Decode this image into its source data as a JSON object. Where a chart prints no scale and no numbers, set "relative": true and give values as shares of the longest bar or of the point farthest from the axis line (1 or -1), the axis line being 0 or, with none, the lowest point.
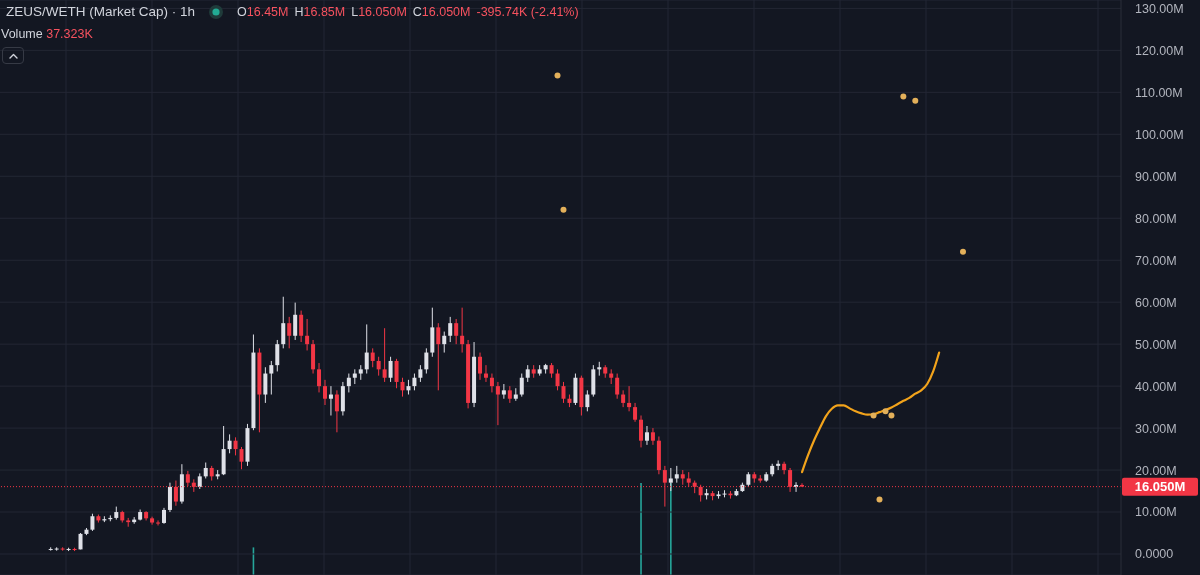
{
  "chart_data": [
    {
      "type": "candlestick",
      "title": "ZEUS/WETH (Market Cap) · 1h",
      "annotations": [
        "O16.45M",
        "H16.85M",
        "L16.050M",
        "C16.050M",
        "-395.74K (-2.41%)",
        "Volume 37.323K"
      ],
      "categories": [
        null,
        null,
        null,
        null,
        null,
        null,
        null,
        null,
        null,
        null,
        null,
        null,
        null,
        null,
        null,
        null,
        null,
        null,
        null,
        null,
        null,
        null,
        null,
        null,
        null,
        null,
        null,
        null,
        null,
        null,
        null,
        null,
        null,
        null,
        null,
        null,
        null,
        null,
        null,
        null,
        null,
        null,
        null,
        null,
        null,
        null,
        null,
        null,
        null,
        null,
        null,
        null,
        null,
        null,
        null,
        null,
        null,
        null,
        null,
        null,
        null,
        null,
        null,
        null,
        null,
        null,
        null,
        null,
        null,
        null,
        null,
        null,
        null,
        null,
        null,
        null,
        null,
        null,
        null,
        null,
        null,
        null,
        null,
        null,
        null,
        null,
        null,
        null,
        null,
        null,
        null,
        null,
        null,
        null,
        null,
        null,
        null,
        null,
        null,
        null,
        null,
        null,
        null,
        null,
        null,
        null,
        null,
        null,
        null,
        null,
        null,
        null,
        null,
        null,
        null,
        null,
        null,
        null,
        null,
        null,
        null,
        null,
        null,
        null,
        null,
        null,
        null,
        null,
        null,
        null,
        null,
        null,
        null,
        null,
        null,
        null,
        null,
        null,
        null,
        null,
        null,
        null,
        null,
        null,
        null,
        null,
        null,
        null,
        null,
        null,
        null,
        null,
        null,
        null,
        null,
        null,
        null,
        null,
        null,
        null,
        null,
        null,
        null,
        null,
        null,
        null,
        null,
        null,
        null,
        null,
        null,
        null,
        null,
        null,
        null,
        null,
        null,
        null,
        null,
        null,
        null,
        null,
        null,
        null,
        null,
        null,
        null,
        null
      ],
      "ohlc": [
        null,
        null,
        null,
        null,
        null,
        null,
        null,
        null,
        [
          1.2,
          1.6,
          0.8,
          1.2
        ],
        [
          1.2,
          1.6,
          0.8,
          1.3
        ],
        [
          1.3,
          1.6,
          0.8,
          1.2
        ],
        [
          1.2,
          1.5,
          0.7,
          1.2
        ],
        [
          1.2,
          1.5,
          0.7,
          1.1
        ],
        [
          1.1,
          5.0,
          1.1,
          4.8
        ],
        [
          4.8,
          6.2,
          4.5,
          5.8
        ],
        [
          5.8,
          9.6,
          5.5,
          9.0
        ],
        [
          9.0,
          9.4,
          7.5,
          8.0
        ],
        [
          8.0,
          9.0,
          7.6,
          8.3
        ],
        [
          8.3,
          9.2,
          7.8,
          8.6
        ],
        [
          8.6,
          11.3,
          8.2,
          10.0
        ],
        [
          10.0,
          10.3,
          7.5,
          8.0
        ],
        [
          8.0,
          8.6,
          6.5,
          7.6
        ],
        [
          7.6,
          8.8,
          7.2,
          8.2
        ],
        [
          8.2,
          10.6,
          8.0,
          10.0
        ],
        [
          10.0,
          10.2,
          8.0,
          8.5
        ],
        [
          8.5,
          8.9,
          7.0,
          7.5
        ],
        [
          7.5,
          8.0,
          6.8,
          7.4
        ],
        [
          7.4,
          11.0,
          7.2,
          10.5
        ],
        [
          10.5,
          17.0,
          10.0,
          16.0
        ],
        [
          16.0,
          17.5,
          11.5,
          12.5
        ],
        [
          12.5,
          21.4,
          12.0,
          19.0
        ],
        [
          19.0,
          19.8,
          16.2,
          17.0
        ],
        [
          17.0,
          17.8,
          14.8,
          16.0
        ],
        [
          16.0,
          19.2,
          15.5,
          18.5
        ],
        [
          18.5,
          21.8,
          18.0,
          20.5
        ],
        [
          20.5,
          21.0,
          17.5,
          18.5
        ],
        [
          18.5,
          20.0,
          17.8,
          19.0
        ],
        [
          19.0,
          30.5,
          18.8,
          25.0
        ],
        [
          25.0,
          28.5,
          24.0,
          27.0
        ],
        [
          27.0,
          27.8,
          23.5,
          25.0
        ],
        [
          25.0,
          25.5,
          20.2,
          22.0
        ],
        [
          22.0,
          31.0,
          21.0,
          30.0
        ],
        [
          30.0,
          52.3,
          29.5,
          48.0
        ],
        [
          48.0,
          49.0,
          29.0,
          38.0
        ],
        [
          38.0,
          44.5,
          36.0,
          43.0
        ],
        [
          43.0,
          46.0,
          38.0,
          45.0
        ],
        [
          45.0,
          51.0,
          43.5,
          50.0
        ],
        [
          50.0,
          61.3,
          49.0,
          55.0
        ],
        [
          55.0,
          56.5,
          49.0,
          52.0
        ],
        [
          52.0,
          59.9,
          51.0,
          57.0
        ],
        [
          57.0,
          58.0,
          50.5,
          52.0
        ],
        [
          52.0,
          56.0,
          48.5,
          50.0
        ],
        [
          50.0,
          51.0,
          43.0,
          44.0
        ],
        [
          44.0,
          45.5,
          38.5,
          40.0
        ],
        [
          40.0,
          41.5,
          35.5,
          37.0
        ],
        [
          37.0,
          40.0,
          33.0,
          38.0
        ],
        [
          38.0,
          39.0,
          29.0,
          34.0
        ],
        [
          34.0,
          41.0,
          33.0,
          40.0
        ],
        [
          40.0,
          43.0,
          38.5,
          42.0
        ],
        [
          42.0,
          44.0,
          40.5,
          43.0
        ],
        [
          43.0,
          45.0,
          41.5,
          44.0
        ],
        [
          44.0,
          54.7,
          43.0,
          48.0
        ],
        [
          48.0,
          49.0,
          44.5,
          46.0
        ],
        [
          46.0,
          47.0,
          42.5,
          44.0
        ],
        [
          44.0,
          53.8,
          41.0,
          42.0
        ],
        [
          42.0,
          47.0,
          41.0,
          46.0
        ],
        [
          46.0,
          46.5,
          39.5,
          41.0
        ],
        [
          41.0,
          42.0,
          37.5,
          39.0
        ],
        [
          39.0,
          41.5,
          38.0,
          40.0
        ],
        [
          40.0,
          43.0,
          39.0,
          42.0
        ],
        [
          42.0,
          45.0,
          41.0,
          44.0
        ],
        [
          44.0,
          49.0,
          43.0,
          48.0
        ],
        [
          48.0,
          58.7,
          47.0,
          54.0
        ],
        [
          54.0,
          55.0,
          39.0,
          50.0
        ],
        [
          50.0,
          53.0,
          48.0,
          52.0
        ],
        [
          52.0,
          56.5,
          50.5,
          55.0
        ],
        [
          55.0,
          56.0,
          50.0,
          52.0
        ],
        [
          52.0,
          58.7,
          48.0,
          50.0
        ],
        [
          50.0,
          51.0,
          34.7,
          36.0
        ],
        [
          36.0,
          50.5,
          35.0,
          47.0
        ],
        [
          47.0,
          48.0,
          41.5,
          43.0
        ],
        [
          43.0,
          45.0,
          41.0,
          42.0
        ],
        [
          42.0,
          43.0,
          38.5,
          40.0
        ],
        [
          40.0,
          41.0,
          30.7,
          38.0
        ],
        [
          38.0,
          40.5,
          37.0,
          39.0
        ],
        [
          39.0,
          40.0,
          36.0,
          37.0
        ],
        [
          37.0,
          39.5,
          36.5,
          38.0
        ],
        [
          38.0,
          43.0,
          37.5,
          42.0
        ],
        [
          42.0,
          45.0,
          41.0,
          44.0
        ],
        [
          44.0,
          45.0,
          42.0,
          43.0
        ],
        [
          43.0,
          45.0,
          42.5,
          44.0
        ],
        [
          44.0,
          45.3,
          43.0,
          45.0
        ],
        [
          45.0,
          45.5,
          42.0,
          43.0
        ],
        [
          43.0,
          44.0,
          39.0,
          40.0
        ],
        [
          40.0,
          41.0,
          36.0,
          37.0
        ],
        [
          37.0,
          38.0,
          35.0,
          36.0
        ],
        [
          36.0,
          43.0,
          35.5,
          42.0
        ],
        [
          42.0,
          42.5,
          33.0,
          35.0
        ],
        [
          35.0,
          39.0,
          34.0,
          38.0
        ],
        [
          38.0,
          45.0,
          37.5,
          44.0
        ],
        [
          44.0,
          45.8,
          42.5,
          44.5
        ],
        [
          44.5,
          45.0,
          42.0,
          43.0
        ],
        [
          43.0,
          44.0,
          40.5,
          42.0
        ],
        [
          42.0,
          43.0,
          37.0,
          38.0
        ],
        [
          38.0,
          39.0,
          35.0,
          36.0
        ],
        [
          36.0,
          40.0,
          34.0,
          35.0
        ],
        [
          35.0,
          36.0,
          31.5,
          32.0
        ],
        [
          32.0,
          33.0,
          25.4,
          27.0
        ],
        [
          27.0,
          30.5,
          26.0,
          29.0
        ],
        [
          29.0,
          30.0,
          26.0,
          27.0
        ],
        [
          27.0,
          28.0,
          19.0,
          20.0
        ],
        [
          20.0,
          21.0,
          11.3,
          17.0
        ],
        [
          17.0,
          20.5,
          15.0,
          18.0
        ],
        [
          18.0,
          21.0,
          17.0,
          19.0
        ],
        [
          19.0,
          20.0,
          16.5,
          18.0
        ],
        [
          18.0,
          19.5,
          16.0,
          17.0
        ],
        [
          17.0,
          17.5,
          14.5,
          16.0
        ],
        [
          16.0,
          16.5,
          12.5,
          14.0
        ],
        [
          14.0,
          15.5,
          13.0,
          14.5
        ],
        [
          14.5,
          15.0,
          12.8,
          13.8
        ],
        [
          13.8,
          15.0,
          13.2,
          14.2
        ],
        [
          14.2,
          15.2,
          13.5,
          14.4
        ],
        [
          14.4,
          15.0,
          13.2,
          14.0
        ],
        [
          14.0,
          15.5,
          13.8,
          15.0
        ],
        [
          15.0,
          17.0,
          14.8,
          16.5
        ],
        [
          16.5,
          19.5,
          16.0,
          19.0
        ],
        [
          19.0,
          19.5,
          17.0,
          18.0
        ],
        [
          18.0,
          18.8,
          17.0,
          17.5
        ],
        [
          17.5,
          19.5,
          17.2,
          19.0
        ],
        [
          19.0,
          21.5,
          18.5,
          21.0
        ],
        [
          21.0,
          22.3,
          20.0,
          21.5
        ],
        [
          21.5,
          22.0,
          19.0,
          20.0
        ],
        [
          20.0,
          20.5,
          14.8,
          16.0
        ],
        [
          16.0,
          17.1,
          14.8,
          16.45
        ],
        [
          16.45,
          16.85,
          16.05,
          16.05
        ],
        null,
        null,
        null,
        null,
        null,
        null,
        null,
        null,
        null,
        null,
        null,
        null,
        null,
        null,
        null,
        null,
        null,
        null,
        null,
        null,
        null,
        null,
        null,
        null,
        null,
        null,
        null,
        null,
        null,
        null,
        null,
        null,
        null,
        null,
        null,
        null,
        null,
        null,
        null,
        null,
        null,
        null,
        null,
        null,
        null,
        null,
        null,
        null,
        null,
        null,
        null,
        null,
        null
      ],
      "colors": [
        null,
        null,
        null,
        null,
        null,
        null,
        null,
        null,
        "#dfe1e8",
        "#dfe1e8",
        "#f23645",
        "#dfe1e8",
        "#f23645",
        "#dfe1e8",
        "#dfe1e8",
        "#dfe1e8",
        "#f23645",
        "#dfe1e8",
        "#dfe1e8",
        "#dfe1e8",
        "#f23645",
        "#f23645",
        "#dfe1e8",
        "#dfe1e8",
        "#f23645",
        "#f23645",
        "#f23645",
        "#dfe1e8",
        "#dfe1e8",
        "#f23645",
        "#dfe1e8",
        "#f23645",
        "#f23645",
        "#dfe1e8",
        "#dfe1e8",
        "#f23645",
        "#dfe1e8",
        "#dfe1e8",
        "#dfe1e8",
        "#f23645",
        "#f23645",
        "#dfe1e8",
        "#dfe1e8",
        "#f23645",
        "#dfe1e8",
        "#dfe1e8",
        "#dfe1e8",
        "#dfe1e8",
        "#f23645",
        "#dfe1e8",
        "#f23645",
        "#f23645",
        "#f23645",
        "#f23645",
        "#f23645",
        "#dfe1e8",
        "#f23645",
        "#dfe1e8",
        "#dfe1e8",
        "#dfe1e8",
        "#dfe1e8",
        "#dfe1e8",
        "#f23645",
        "#f23645",
        "#f23645",
        "#dfe1e8",
        "#f23645",
        "#f23645",
        "#dfe1e8",
        "#dfe1e8",
        "#dfe1e8",
        "#dfe1e8",
        "#dfe1e8",
        "#f23645",
        "#dfe1e8",
        "#dfe1e8",
        "#f23645",
        "#f23645",
        "#f23645",
        "#dfe1e8",
        "#f23645",
        "#f23645",
        "#f23645",
        "#f23645",
        "#dfe1e8",
        "#f23645",
        "#dfe1e8",
        "#dfe1e8",
        "#dfe1e8",
        "#f23645",
        "#dfe1e8",
        "#dfe1e8",
        "#f23645",
        "#f23645",
        "#f23645",
        "#f23645",
        "#dfe1e8",
        "#f23645",
        "#dfe1e8",
        "#dfe1e8",
        "#dfe1e8",
        "#f23645",
        "#f23645",
        "#f23645",
        "#f23645",
        "#f23645",
        "#f23645",
        "#f23645",
        "#dfe1e8",
        "#f23645",
        "#f23645",
        "#f23645",
        "#dfe1e8",
        "#dfe1e8",
        "#f23645",
        "#f23645",
        "#f23645",
        "#f23645",
        "#dfe1e8",
        "#f23645",
        "#dfe1e8",
        "#dfe1e8",
        "#f23645",
        "#dfe1e8",
        "#dfe1e8",
        "#dfe1e8",
        "#f23645",
        "#f23645",
        "#dfe1e8",
        "#dfe1e8",
        "#dfe1e8",
        "#f23645",
        "#f23645",
        "#dfe1e8",
        "#f23645",
        null,
        null,
        null,
        null,
        null,
        null,
        null,
        null,
        null,
        null,
        null,
        null,
        null,
        null,
        null,
        null,
        null,
        null,
        null,
        null,
        null,
        null,
        null,
        null,
        null,
        null,
        null,
        null,
        null,
        null,
        null,
        null,
        null,
        null,
        null,
        null,
        null,
        null,
        null,
        null,
        null,
        null,
        null,
        null,
        null,
        null,
        null,
        null,
        null,
        null,
        null,
        null,
        null
      ],
      "series": [
        {
          "type": "line",
          "color": "#f2a31b",
          "values": [
            null,
            null,
            null,
            null,
            null,
            null,
            null,
            null,
            null,
            null,
            null,
            null,
            null,
            null,
            null,
            null,
            null,
            null,
            null,
            null,
            null,
            null,
            null,
            null,
            null,
            null,
            null,
            null,
            null,
            null,
            null,
            null,
            null,
            null,
            null,
            null,
            null,
            null,
            null,
            null,
            null,
            null,
            null,
            null,
            null,
            null,
            null,
            null,
            null,
            null,
            null,
            null,
            null,
            null,
            null,
            null,
            null,
            null,
            null,
            null,
            null,
            null,
            null,
            null,
            null,
            null,
            null,
            null,
            null,
            null,
            null,
            null,
            null,
            null,
            null,
            null,
            null,
            null,
            null,
            null,
            null,
            null,
            null,
            null,
            null,
            null,
            null,
            null,
            null,
            null,
            null,
            null,
            null,
            null,
            null,
            null,
            null,
            null,
            null,
            null,
            null,
            null,
            null,
            null,
            null,
            null,
            null,
            null,
            null,
            null,
            null,
            null,
            null,
            null,
            null,
            null,
            null,
            null,
            null,
            null,
            null,
            null,
            null,
            null,
            null,
            null,
            null,
            null,
            null,
            null,
            null,
            null,
            null,
            null,
            19.5,
            23.5,
            27,
            30,
            32.8,
            34.6,
            35.4,
            35.4,
            34.7,
            34,
            33.5,
            33.2,
            33.3,
            33.8,
            34.3,
            34.9,
            35.7,
            36.5,
            37.2,
            38.2,
            39,
            40.5,
            43.5,
            48,
            null,
            null,
            null,
            null,
            null,
            null,
            null,
            null,
            null,
            null,
            null,
            null,
            null,
            null,
            null,
            null,
            null,
            null,
            null,
            null,
            null,
            null,
            null,
            null,
            null,
            null,
            null,
            null,
            null,
            null
          ]
        },
        {
          "type": "scatter",
          "color": "#e3b05a",
          "marker": "circle",
          "values": [
            null,
            null,
            null,
            null,
            null,
            null,
            null,
            null,
            null,
            null,
            null,
            null,
            null,
            null,
            null,
            null,
            null,
            null,
            null,
            null,
            null,
            null,
            null,
            null,
            null,
            null,
            null,
            null,
            null,
            null,
            null,
            null,
            null,
            null,
            null,
            null,
            null,
            null,
            null,
            null,
            null,
            null,
            null,
            null,
            null,
            null,
            null,
            null,
            null,
            null,
            null,
            null,
            null,
            null,
            null,
            null,
            null,
            null,
            null,
            null,
            null,
            null,
            null,
            null,
            null,
            null,
            null,
            null,
            null,
            null,
            null,
            null,
            null,
            null,
            null,
            null,
            null,
            null,
            null,
            null,
            null,
            null,
            null,
            null,
            null,
            null,
            null,
            null,
            null,
            null,
            null,
            null,
            null,
            114,
            82,
            null,
            null,
            null,
            null,
            null,
            null,
            null,
            null,
            null,
            null,
            null,
            null,
            null,
            null,
            null,
            null,
            null,
            null,
            null,
            null,
            null,
            null,
            null,
            null,
            null,
            null,
            null,
            null,
            null,
            null,
            null,
            null,
            null,
            null,
            null,
            null,
            null,
            null,
            null,
            null,
            null,
            null,
            null,
            null,
            null,
            null,
            null,
            null,
            null,
            null,
            null,
            33,
            13,
            34,
            33,
            null,
            109,
            null,
            108,
            null,
            null,
            null,
            null,
            null,
            null,
            null,
            72,
            null,
            null,
            null,
            null,
            null,
            null,
            null,
            null,
            null,
            null,
            null,
            null,
            null,
            null,
            null,
            null,
            null,
            null,
            null,
            null,
            null,
            null,
            null,
            null,
            null,
            null
          ]
        }
      ],
      "ylim": [
        -5,
        132
      ],
      "yticks": [
        {
          "value": 0,
          "label": "0.0000"
        },
        {
          "value": 10,
          "label": "10.00M"
        },
        {
          "value": 20,
          "label": "20.00M"
        },
        {
          "value": 30,
          "label": "30.00M"
        },
        {
          "value": 40,
          "label": "40.00M"
        },
        {
          "value": 50,
          "label": "50.00M"
        },
        {
          "value": 60,
          "label": "60.00M"
        },
        {
          "value": 70,
          "label": "70.00M"
        },
        {
          "value": 80,
          "label": "80.00M"
        },
        {
          "value": 90,
          "label": "90.00M"
        },
        {
          "value": 100,
          "label": "100.00M"
        },
        {
          "value": 110,
          "label": "110.00M"
        },
        {
          "value": 120,
          "label": "120.00M"
        },
        {
          "value": 130,
          "label": "130.00M"
        }
      ],
      "ref_lines": [
        {
          "axis": "y",
          "value": 16.05,
          "label": "16.050M",
          "color": "#f23645",
          "line_style": "dotted"
        }
      ],
      "grid": true,
      "tick_labels": "y"
    },
    {
      "type": "bar",
      "relative": true,
      "tick_labels": false,
      "color": "#26a69a",
      "categories": [
        null,
        null,
        null,
        null,
        null,
        null,
        null,
        null,
        null,
        null,
        null,
        null,
        null,
        null,
        null,
        null,
        null,
        null,
        null,
        null,
        null,
        null,
        null,
        null,
        null,
        null,
        null,
        null,
        null,
        null,
        null,
        null,
        null,
        null,
        null,
        null,
        null,
        null,
        null,
        null,
        null,
        null,
        null,
        null,
        null,
        null,
        null,
        null,
        null,
        null,
        null,
        null,
        null,
        null,
        null,
        null,
        null,
        null,
        null,
        null,
        null,
        null,
        null,
        null,
        null,
        null,
        null,
        null,
        null,
        null,
        null,
        null,
        null,
        null,
        null,
        null,
        null,
        null,
        null,
        null,
        null,
        null,
        null,
        null,
        null,
        null,
        null,
        null,
        null,
        null,
        null,
        null,
        null,
        null,
        null,
        null,
        null,
        null,
        null,
        null,
        null,
        null,
        null,
        null,
        null,
        null,
        null,
        null,
        null,
        null,
        null,
        null,
        null,
        null,
        null,
        null,
        null,
        null,
        null,
        null,
        null,
        null,
        null,
        null,
        null,
        null,
        null,
        null,
        null,
        null,
        null,
        null,
        null,
        null,
        null,
        null,
        null,
        null,
        null,
        null,
        null,
        null,
        null,
        null,
        null,
        null,
        null,
        null,
        null,
        null,
        null,
        null,
        null,
        null,
        null,
        null,
        null,
        null,
        null,
        null,
        null,
        null,
        null,
        null,
        null,
        null,
        null,
        null,
        null,
        null,
        null,
        null,
        null,
        null,
        null,
        null,
        null,
        null,
        null,
        null,
        null,
        null,
        null,
        null,
        null,
        null,
        null,
        null
      ],
      "values": [
        null,
        null,
        null,
        null,
        null,
        null,
        null,
        null,
        null,
        null,
        null,
        null,
        null,
        null,
        null,
        null,
        null,
        null,
        null,
        null,
        null,
        null,
        null,
        null,
        null,
        null,
        null,
        null,
        null,
        null,
        null,
        null,
        null,
        null,
        null,
        null,
        null,
        null,
        null,
        null,
        null,
        null,
        0.3,
        null,
        null,
        null,
        null,
        null,
        null,
        null,
        null,
        null,
        null,
        null,
        null,
        null,
        null,
        null,
        null,
        null,
        null,
        null,
        null,
        null,
        null,
        null,
        null,
        null,
        null,
        null,
        null,
        null,
        null,
        null,
        null,
        null,
        null,
        null,
        null,
        null,
        null,
        null,
        null,
        null,
        null,
        null,
        null,
        null,
        null,
        null,
        null,
        null,
        null,
        null,
        null,
        null,
        null,
        null,
        null,
        null,
        null,
        null,
        null,
        null,
        null,
        null,
        null,
        1,
        null,
        null,
        null,
        null,
        1,
        null,
        null,
        null,
        null,
        null,
        null,
        null,
        null,
        null,
        null,
        null,
        null,
        null,
        null,
        null,
        null,
        null,
        null,
        null,
        null,
        null,
        null,
        null,
        null,
        null,
        null,
        null,
        null,
        null,
        null,
        null,
        null,
        null,
        null,
        null,
        null,
        null,
        null,
        null,
        null,
        null,
        null,
        null,
        null,
        null,
        null,
        null,
        null,
        null,
        null,
        null,
        null,
        null,
        null,
        null,
        null,
        null,
        null,
        null,
        null,
        null,
        null,
        null,
        null,
        null,
        null,
        null,
        null,
        null,
        null,
        null,
        null,
        null,
        null,
        null
      ]
    }
  ]
}
